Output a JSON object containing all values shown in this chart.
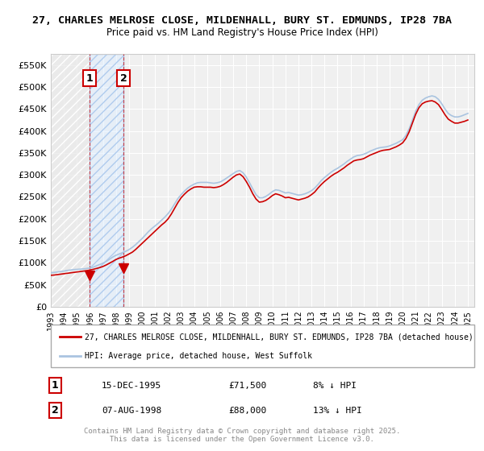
{
  "title_line1": "27, CHARLES MELROSE CLOSE, MILDENHALL, BURY ST. EDMUNDS, IP28 7BA",
  "title_line2": "Price paid vs. HM Land Registry's House Price Index (HPI)",
  "ylabel_ticks": [
    "£0",
    "£50K",
    "£100K",
    "£150K",
    "£200K",
    "£250K",
    "£300K",
    "£350K",
    "£400K",
    "£450K",
    "£500K",
    "£550K"
  ],
  "ytick_values": [
    0,
    50000,
    100000,
    150000,
    200000,
    250000,
    300000,
    350000,
    400000,
    450000,
    500000,
    550000
  ],
  "ylim": [
    0,
    575000
  ],
  "xlim_start": 1993.0,
  "xlim_end": 2025.5,
  "background_color": "#ffffff",
  "plot_bg_color": "#f0f0f0",
  "grid_color": "#ffffff",
  "hpi_color": "#aac4e0",
  "price_color": "#cc0000",
  "purchase_marker_color": "#cc0000",
  "legend_line1": "27, CHARLES MELROSE CLOSE, MILDENHALL, BURY ST. EDMUNDS, IP28 7BA (detached house)",
  "legend_line2": "HPI: Average price, detached house, West Suffolk",
  "transaction1_label": "1",
  "transaction1_date": "15-DEC-1995",
  "transaction1_price": "£71,500",
  "transaction1_hpi": "8% ↓ HPI",
  "transaction2_label": "2",
  "transaction2_date": "07-AUG-1998",
  "transaction2_price": "£88,000",
  "transaction2_hpi": "13% ↓ HPI",
  "footer": "Contains HM Land Registry data © Crown copyright and database right 2025.\nThis data is licensed under the Open Government Licence v3.0.",
  "hpi_x": [
    1993.0,
    1993.25,
    1993.5,
    1993.75,
    1994.0,
    1994.25,
    1994.5,
    1994.75,
    1995.0,
    1995.25,
    1995.5,
    1995.75,
    1996.0,
    1996.25,
    1996.5,
    1996.75,
    1997.0,
    1997.25,
    1997.5,
    1997.75,
    1998.0,
    1998.25,
    1998.5,
    1998.75,
    1999.0,
    1999.25,
    1999.5,
    1999.75,
    2000.0,
    2000.25,
    2000.5,
    2000.75,
    2001.0,
    2001.25,
    2001.5,
    2001.75,
    2002.0,
    2002.25,
    2002.5,
    2002.75,
    2003.0,
    2003.25,
    2003.5,
    2003.75,
    2004.0,
    2004.25,
    2004.5,
    2004.75,
    2005.0,
    2005.25,
    2005.5,
    2005.75,
    2006.0,
    2006.25,
    2006.5,
    2006.75,
    2007.0,
    2007.25,
    2007.5,
    2007.75,
    2008.0,
    2008.25,
    2008.5,
    2008.75,
    2009.0,
    2009.25,
    2009.5,
    2009.75,
    2010.0,
    2010.25,
    2010.5,
    2010.75,
    2011.0,
    2011.25,
    2011.5,
    2011.75,
    2012.0,
    2012.25,
    2012.5,
    2012.75,
    2013.0,
    2013.25,
    2013.5,
    2013.75,
    2014.0,
    2014.25,
    2014.5,
    2014.75,
    2015.0,
    2015.25,
    2015.5,
    2015.75,
    2016.0,
    2016.25,
    2016.5,
    2016.75,
    2017.0,
    2017.25,
    2017.5,
    2017.75,
    2018.0,
    2018.25,
    2018.5,
    2018.75,
    2019.0,
    2019.25,
    2019.5,
    2019.75,
    2020.0,
    2020.25,
    2020.5,
    2020.75,
    2021.0,
    2021.25,
    2021.5,
    2021.75,
    2022.0,
    2022.25,
    2022.5,
    2022.75,
    2023.0,
    2023.25,
    2023.5,
    2023.75,
    2024.0,
    2024.25,
    2024.5,
    2024.75,
    2025.0
  ],
  "hpi_y": [
    77000,
    78000,
    79000,
    80000,
    81000,
    82500,
    83500,
    84500,
    85000,
    85500,
    86000,
    87000,
    88000,
    90000,
    93000,
    96000,
    99000,
    103000,
    108000,
    113000,
    117000,
    120000,
    123000,
    126000,
    130000,
    135000,
    141000,
    148000,
    155000,
    163000,
    171000,
    178000,
    184000,
    190000,
    197000,
    204000,
    212000,
    222000,
    234000,
    246000,
    255000,
    263000,
    270000,
    275000,
    279000,
    282000,
    283000,
    283000,
    283000,
    282000,
    281000,
    282000,
    284000,
    288000,
    293000,
    298000,
    303000,
    308000,
    310000,
    305000,
    295000,
    282000,
    268000,
    255000,
    248000,
    248000,
    251000,
    256000,
    262000,
    266000,
    265000,
    262000,
    259000,
    260000,
    258000,
    256000,
    254000,
    255000,
    257000,
    260000,
    264000,
    270000,
    278000,
    287000,
    294000,
    300000,
    306000,
    311000,
    315000,
    320000,
    325000,
    331000,
    336000,
    341000,
    344000,
    345000,
    347000,
    350000,
    354000,
    357000,
    360000,
    362000,
    363000,
    364000,
    366000,
    369000,
    372000,
    376000,
    380000,
    390000,
    405000,
    425000,
    445000,
    460000,
    470000,
    475000,
    478000,
    480000,
    478000,
    472000,
    462000,
    450000,
    440000,
    435000,
    432000,
    432000,
    434000,
    437000,
    440000
  ],
  "price_x": [
    1993.0,
    1993.25,
    1993.5,
    1993.75,
    1994.0,
    1994.25,
    1994.5,
    1994.75,
    1995.0,
    1995.25,
    1995.5,
    1995.75,
    1996.0,
    1996.25,
    1996.5,
    1996.75,
    1997.0,
    1997.25,
    1997.5,
    1997.75,
    1998.0,
    1998.25,
    1998.5,
    1998.75,
    1999.0,
    1999.25,
    1999.5,
    1999.75,
    2000.0,
    2000.25,
    2000.5,
    2000.75,
    2001.0,
    2001.25,
    2001.5,
    2001.75,
    2002.0,
    2002.25,
    2002.5,
    2002.75,
    2003.0,
    2003.25,
    2003.5,
    2003.75,
    2004.0,
    2004.25,
    2004.5,
    2004.75,
    2005.0,
    2005.25,
    2005.5,
    2005.75,
    2006.0,
    2006.25,
    2006.5,
    2006.75,
    2007.0,
    2007.25,
    2007.5,
    2007.75,
    2008.0,
    2008.25,
    2008.5,
    2008.75,
    2009.0,
    2009.25,
    2009.5,
    2009.75,
    2010.0,
    2010.25,
    2010.5,
    2010.75,
    2011.0,
    2011.25,
    2011.5,
    2011.75,
    2012.0,
    2012.25,
    2012.5,
    2012.75,
    2013.0,
    2013.25,
    2013.5,
    2013.75,
    2014.0,
    2014.25,
    2014.5,
    2014.75,
    2015.0,
    2015.25,
    2015.5,
    2015.75,
    2016.0,
    2016.25,
    2016.5,
    2016.75,
    2017.0,
    2017.25,
    2017.5,
    2017.75,
    2018.0,
    2018.25,
    2018.5,
    2018.75,
    2019.0,
    2019.25,
    2019.5,
    2019.75,
    2020.0,
    2020.25,
    2020.5,
    2020.75,
    2021.0,
    2021.25,
    2021.5,
    2021.75,
    2022.0,
    2022.25,
    2022.5,
    2022.75,
    2023.0,
    2023.25,
    2023.5,
    2023.75,
    2024.0,
    2024.25,
    2024.5,
    2024.75,
    2025.0
  ],
  "price_y": [
    71500,
    72000,
    73000,
    74000,
    75000,
    76000,
    77000,
    78000,
    79000,
    80000,
    81000,
    82000,
    83500,
    85000,
    87000,
    89000,
    91500,
    95000,
    99000,
    103000,
    107500,
    110500,
    113000,
    116000,
    120000,
    124000,
    130000,
    137000,
    144000,
    151000,
    158000,
    165000,
    172000,
    179000,
    186000,
    192000,
    200000,
    211000,
    224000,
    237000,
    248000,
    256000,
    263000,
    268000,
    272000,
    273000,
    273000,
    272000,
    272000,
    272000,
    271000,
    272000,
    274000,
    278000,
    283000,
    289000,
    295000,
    300000,
    302000,
    296000,
    285000,
    272000,
    257000,
    245000,
    238000,
    239000,
    242000,
    247000,
    253000,
    257000,
    255000,
    252000,
    248000,
    249000,
    247000,
    245000,
    243000,
    245000,
    247000,
    250000,
    255000,
    261000,
    270000,
    278000,
    285000,
    291000,
    297000,
    302000,
    306000,
    311000,
    316000,
    322000,
    327000,
    332000,
    334000,
    335000,
    337000,
    341000,
    345000,
    348000,
    351000,
    354000,
    356000,
    357000,
    358000,
    361000,
    364000,
    368000,
    373000,
    383000,
    398000,
    418000,
    438000,
    453000,
    462000,
    466000,
    468000,
    469000,
    466000,
    460000,
    449000,
    437000,
    427000,
    422000,
    418000,
    418000,
    420000,
    422000,
    425000
  ],
  "transaction1_x": 1995.96,
  "transaction1_y": 71500,
  "transaction2_x": 1998.58,
  "transaction2_y": 88000,
  "marker1_x": 1995.96,
  "marker2_x": 1998.58,
  "vline1_x": 1995.96,
  "vline2_x": 1998.58,
  "xtick_years": [
    1993,
    1994,
    1995,
    1996,
    1997,
    1998,
    1999,
    2000,
    2001,
    2002,
    2003,
    2004,
    2005,
    2006,
    2007,
    2008,
    2009,
    2010,
    2011,
    2012,
    2013,
    2014,
    2015,
    2016,
    2017,
    2018,
    2019,
    2020,
    2021,
    2022,
    2023,
    2024,
    2025
  ]
}
